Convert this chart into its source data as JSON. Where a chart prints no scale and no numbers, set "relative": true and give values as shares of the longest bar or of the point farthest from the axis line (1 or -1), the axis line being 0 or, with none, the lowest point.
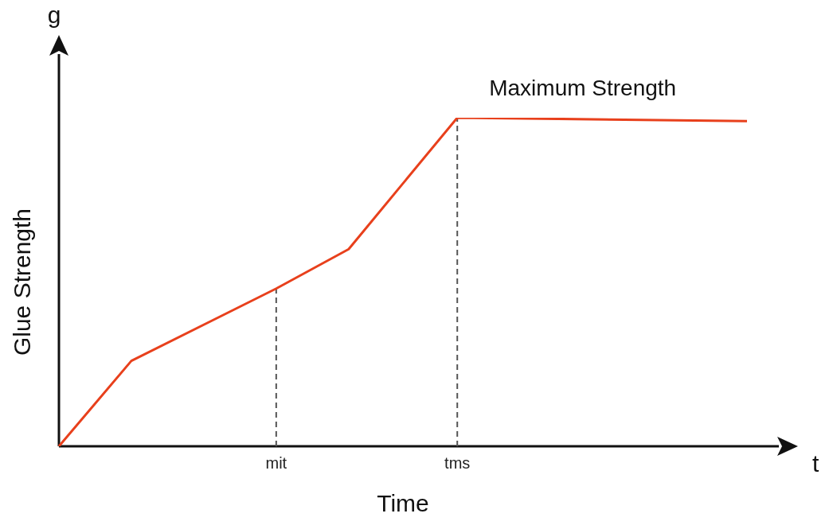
{
  "chart_data": {
    "type": "line",
    "relative": true,
    "xlabel": "Time",
    "ylabel": "Glue Strength",
    "categories": [
      null,
      null,
      null,
      null,
      null,
      null,
      "mit",
      null,
      null,
      null,
      null,
      "tms",
      null,
      null,
      null,
      null,
      null,
      null,
      null,
      null
    ],
    "series": [
      {
        "color": "#e8401c",
        "values": [
          0,
          null,
          0.26,
          null,
          null,
          null,
          0.48,
          null,
          0.6,
          null,
          null,
          1,
          null,
          null,
          null,
          null,
          null,
          null,
          null,
          0.99
        ]
      }
    ],
    "ref_lines": [
      {
        "axis": "x",
        "value": "mit",
        "color": "#555555",
        "line_style": "dashed"
      },
      {
        "axis": "x",
        "value": "tms",
        "color": "#555555",
        "line_style": "dashed"
      }
    ],
    "annotations": [
      "g",
      "t",
      {
        "text": "Maximum Strength",
        "x": "tms",
        "y": 1
      }
    ],
    "grid": false,
    "legend": false,
    "marker": "none",
    "line_style": "solid"
  }
}
